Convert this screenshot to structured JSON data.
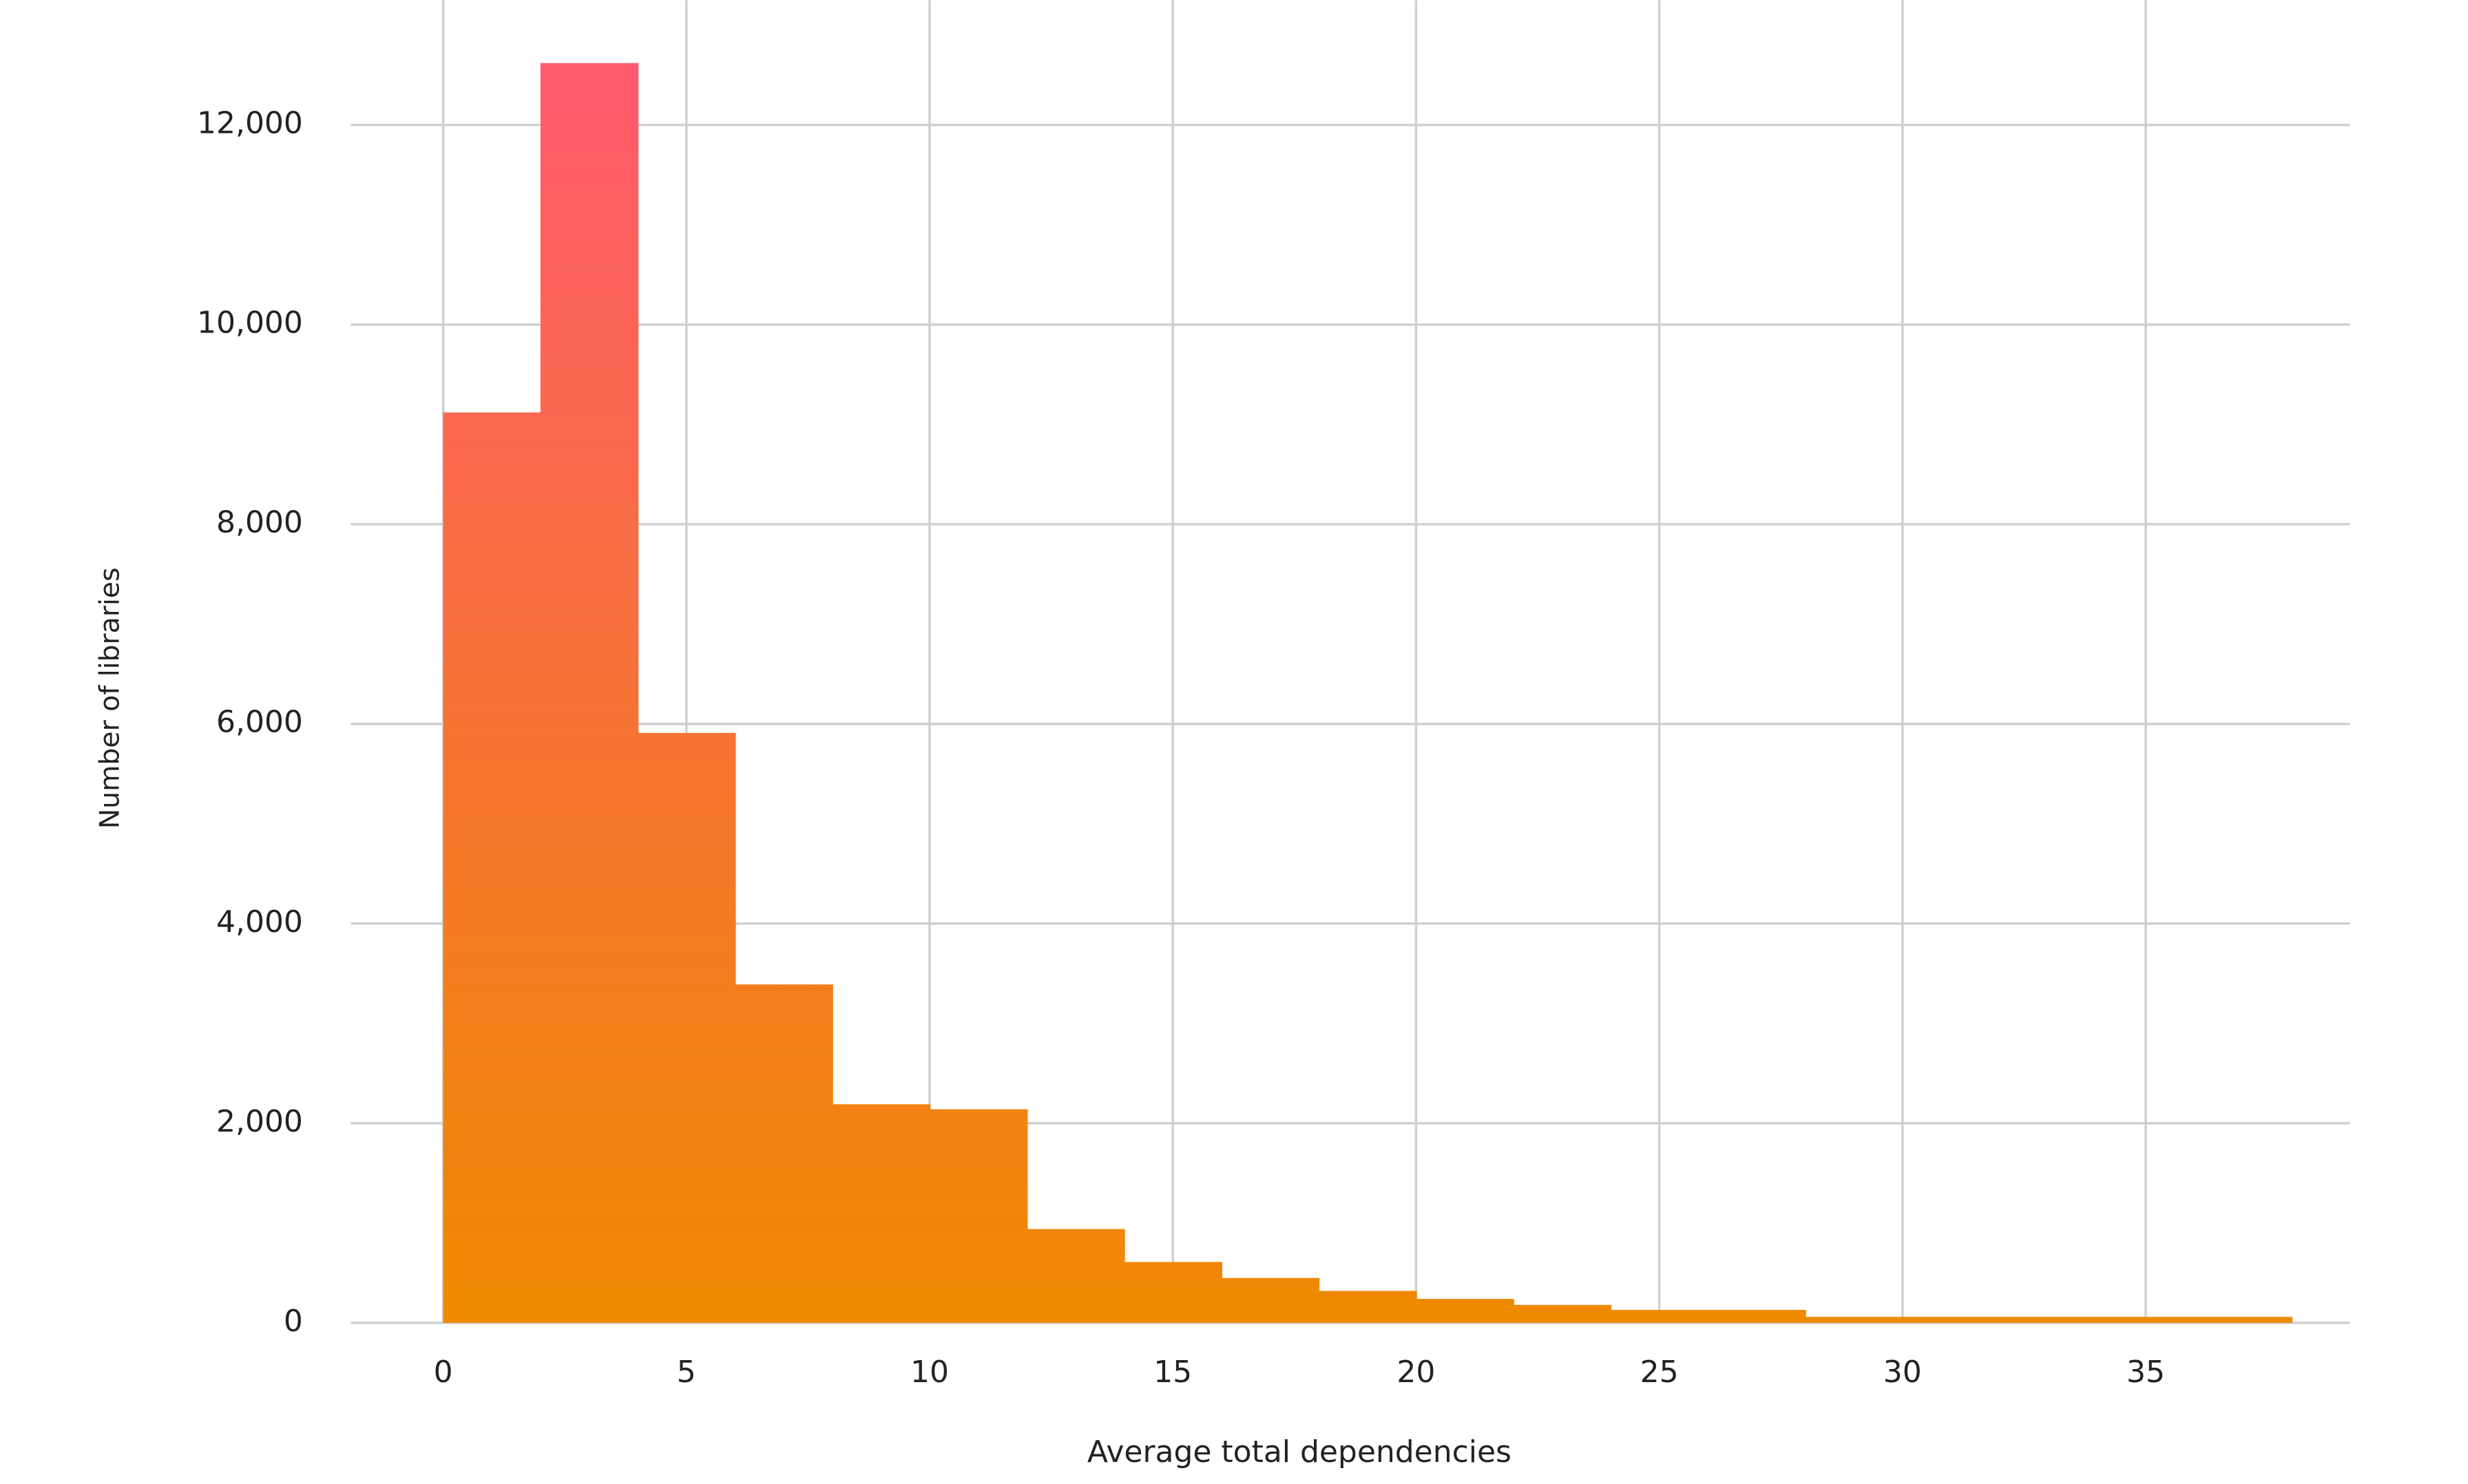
{
  "chart_data": {
    "type": "histogram",
    "xlabel": "Average total dependencies",
    "ylabel": "Number of libraries",
    "bins": [
      0,
      2,
      4,
      6,
      8,
      10,
      12,
      14,
      16,
      18,
      20,
      22,
      24,
      26,
      28,
      30,
      32,
      34,
      36,
      38
    ],
    "values": [
      9120,
      12620,
      5910,
      3390,
      2190,
      2140,
      940,
      610,
      450,
      320,
      240,
      180,
      130,
      130,
      60,
      60,
      60,
      60,
      60
    ],
    "color_top": "#ff5a6e",
    "color_bottom": "#ef8a00",
    "xlim": [
      -1.9,
      39.2
    ],
    "ylim": [
      0,
      13250
    ],
    "xticks": [
      0,
      5,
      10,
      15,
      20,
      25,
      30,
      35
    ],
    "yticks": [
      0,
      {
        "value": 2000,
        "label": "2,000"
      },
      {
        "value": 4000,
        "label": "4,000"
      },
      {
        "value": 6000,
        "label": "6,000"
      },
      {
        "value": 8000,
        "label": "8,000"
      },
      {
        "value": 10000,
        "label": "10,000"
      },
      {
        "value": 12000,
        "label": "12,000"
      }
    ],
    "grid": true
  }
}
